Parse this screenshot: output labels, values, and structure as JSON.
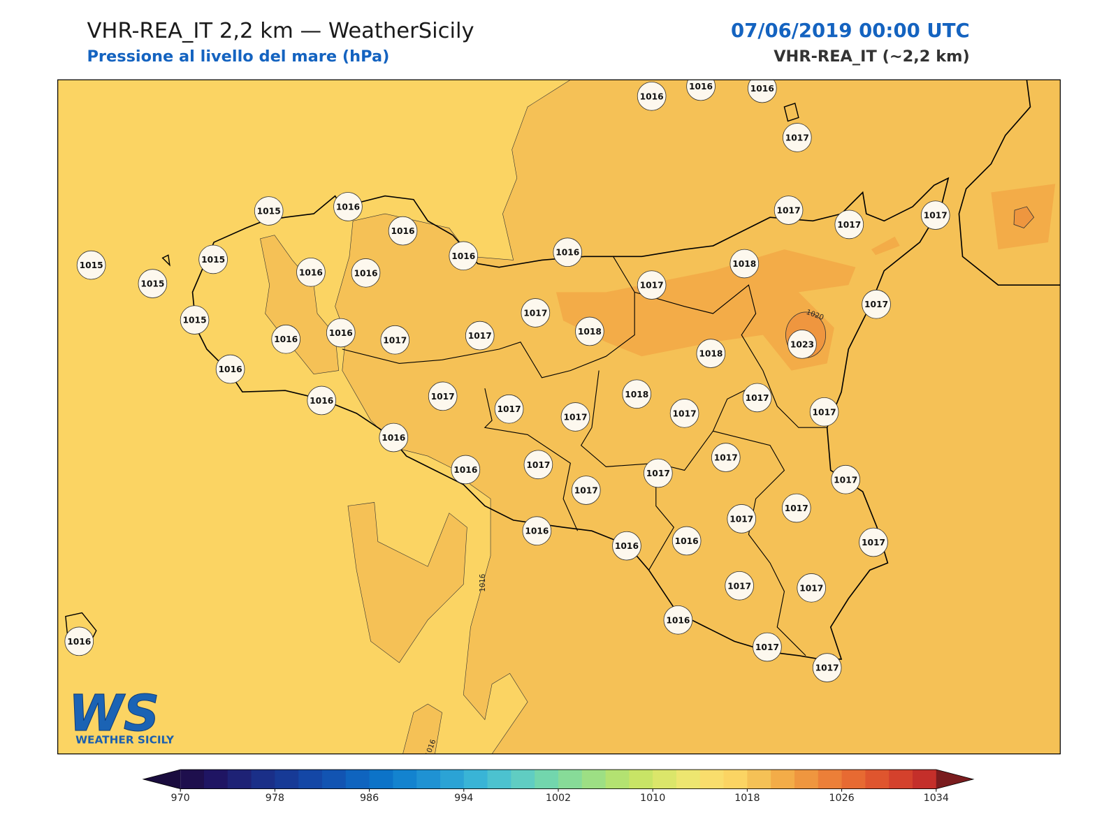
{
  "header": {
    "title": "VHR-REA_IT 2,2 km — WeatherSicily",
    "subtitle": "Pressione al livello del mare (hPa)",
    "datetime": "07/06/2019 00:00 UTC",
    "model": "VHR-REA_IT (~2,2 km)"
  },
  "logo": {
    "mark": "WS",
    "text": "WEATHER SICILY"
  },
  "station_values": [
    1016,
    1016,
    1016,
    1017,
    1015,
    1016,
    1016,
    1017,
    1017,
    1017,
    1015,
    1015,
    1016,
    1016,
    1018,
    1015,
    1016,
    1016,
    1017,
    1017,
    1017,
    1015,
    1016,
    1016,
    1017,
    1017,
    1018,
    1023,
    1018,
    1016,
    1017,
    1018,
    1017,
    1016,
    1017,
    1017,
    1017,
    1017,
    1016,
    1017,
    1016,
    1017,
    1017,
    1017,
    1017,
    1017,
    1017,
    1016,
    1016,
    1016,
    1017,
    1017,
    1017,
    1016,
    1016,
    1017,
    1017
  ],
  "contour_labels": [
    1020,
    1016,
    1016
  ],
  "colorbar": {
    "lim": [
      970,
      1034
    ],
    "ticks": [
      970,
      978,
      986,
      994,
      1002,
      1010,
      1018,
      1026,
      1034
    ],
    "colors": [
      "#1e0f4d",
      "#1f1563",
      "#1e2275",
      "#1a2f88",
      "#173a96",
      "#1447a6",
      "#1254b2",
      "#0f64bf",
      "#0c73c8",
      "#1383cf",
      "#1f92d3",
      "#2ba3d5",
      "#39b4d6",
      "#4cc2cf",
      "#60cdc2",
      "#72d6ad",
      "#87db98",
      "#9ddf84",
      "#b3e271",
      "#c8e466",
      "#dbe66a",
      "#ede670",
      "#f9dd6c",
      "#fbd463",
      "#f5c156",
      "#f3ac48",
      "#ef963f",
      "#ec7f38",
      "#e76a32",
      "#df552e",
      "#d4412c",
      "#c42f2a"
    ],
    "under": "#1a0c3e",
    "over": "#7a1c1e"
  }
}
